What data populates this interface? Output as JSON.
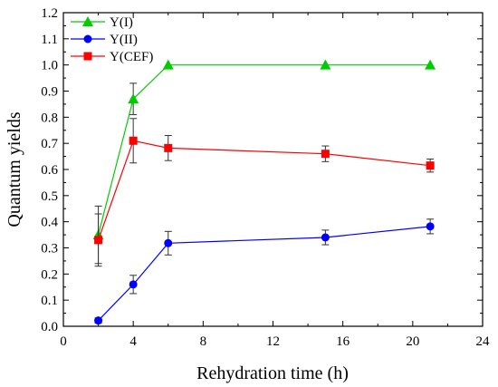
{
  "chart_data": {
    "type": "line",
    "title": "",
    "xlabel": "Rehydration time (h)",
    "ylabel": "Quantum yields",
    "xlim": [
      0,
      24
    ],
    "ylim": [
      0,
      1.2
    ],
    "x_ticks": [
      "0",
      "4",
      "8",
      "12",
      "16",
      "20",
      "24"
    ],
    "y_ticks": [
      "0.0",
      "0.1",
      "0.2",
      "0.3",
      "0.4",
      "0.5",
      "0.6",
      "0.7",
      "0.8",
      "0.9",
      "1.0",
      "1.1",
      "1.2"
    ],
    "grid": false,
    "legend_position": "top-left",
    "series": [
      {
        "name": "Y(I)",
        "color": "#00cc00",
        "marker": "triangle",
        "x": [
          2,
          4,
          6,
          15,
          21
        ],
        "values": [
          0.35,
          0.87,
          1.0,
          1.0,
          1.0
        ],
        "errors": [
          0.11,
          0.06,
          0,
          0,
          0
        ]
      },
      {
        "name": "Y(II)",
        "color": "#0000ff",
        "marker": "circle",
        "x": [
          2,
          4,
          6,
          15,
          21
        ],
        "values": [
          0.022,
          0.16,
          0.318,
          0.34,
          0.382
        ],
        "errors": [
          0.01,
          0.035,
          0.045,
          0.028,
          0.028
        ]
      },
      {
        "name": "Y(CEF)",
        "color": "#ff0000",
        "marker": "square",
        "x": [
          2,
          4,
          6,
          15,
          21
        ],
        "values": [
          0.33,
          0.71,
          0.682,
          0.66,
          0.615
        ],
        "errors": [
          0.1,
          0.085,
          0.048,
          0.03,
          0.025
        ]
      }
    ]
  }
}
